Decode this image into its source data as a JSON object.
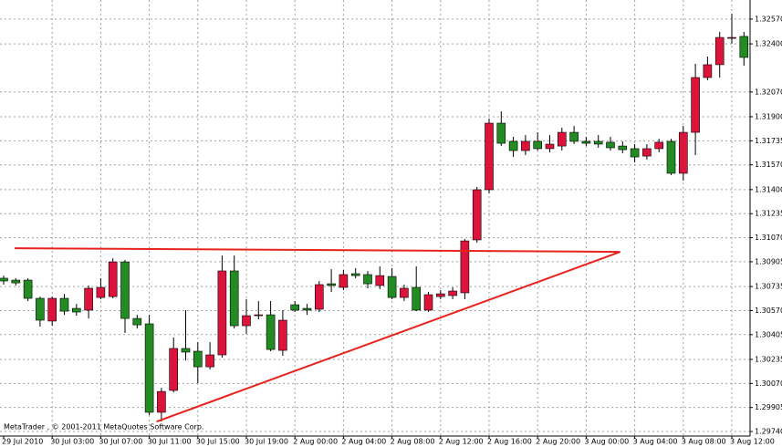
{
  "chart_data": {
    "type": "candlestick",
    "copyright": "MetaTrader , © 2001-2011 MetaQuotes Software Corp.",
    "up_color": "#dc143c",
    "down_color": "#228b22",
    "grid": true,
    "categories": [
      "29 Jul 2010",
      null,
      null,
      null,
      "30 Jul 03:00",
      null,
      null,
      null,
      "30 Jul 07:00",
      null,
      null,
      null,
      "30 Jul 11:00",
      null,
      null,
      null,
      "30 Jul 15:00",
      null,
      null,
      null,
      "30 Jul 19:00",
      null,
      null,
      null,
      "2 Aug 00:00",
      null,
      null,
      null,
      "2 Aug 04:00",
      null,
      null,
      null,
      "2 Aug 08:00",
      null,
      null,
      null,
      "2 Aug 12:00",
      null,
      null,
      null,
      "2 Aug 16:00",
      null,
      null,
      null,
      "2 Aug 20:00",
      null,
      null,
      null,
      "3 Aug 00:00",
      null,
      null,
      null,
      "3 Aug 04:00",
      null,
      null,
      null,
      "3 Aug 08:00",
      null,
      null,
      null,
      "3 Aug 12:00",
      null
    ],
    "open": [
      1.30792,
      1.30779,
      1.30779,
      1.30654,
      1.30498,
      1.30654,
      1.30585,
      1.30573,
      1.3066,
      1.30666,
      1.30904,
      1.30516,
      1.30479,
      1.29872,
      1.30022,
      1.3031,
      1.30291,
      1.30184,
      1.30266,
      1.30842,
      1.30466,
      1.30535,
      1.30541,
      1.30297,
      1.3061,
      1.30585,
      1.30579,
      1.30754,
      1.30729,
      1.30823,
      1.30817,
      1.30742,
      1.30804,
      1.3066,
      1.30729,
      1.30573,
      1.30666,
      1.30673,
      1.30692,
      1.31055,
      1.31399,
      1.31856,
      1.31731,
      1.31668,
      1.31731,
      1.31681,
      1.31699,
      1.31793,
      1.31731,
      1.31731,
      1.31725,
      1.31699,
      1.31681,
      1.3163,
      1.31681,
      1.31731,
      1.31512,
      1.31793,
      1.32169,
      1.32257,
      1.32438,
      1.32451
    ],
    "high": [
      1.3081,
      1.30792,
      1.30792,
      1.30666,
      1.30666,
      1.30685,
      1.30616,
      1.30742,
      1.30792,
      1.30929,
      1.30917,
      1.30541,
      1.30541,
      1.3004,
      1.30385,
      1.30573,
      1.30353,
      1.30353,
      1.30948,
      1.30948,
      1.30648,
      1.30635,
      1.30635,
      1.30573,
      1.30635,
      1.30616,
      1.30773,
      1.30854,
      1.30848,
      1.30861,
      1.30842,
      1.30873,
      1.30861,
      1.30748,
      1.30873,
      1.30698,
      1.3071,
      1.30729,
      1.31061,
      1.31418,
      1.31887,
      1.31937,
      1.31762,
      1.31774,
      1.31793,
      1.31774,
      1.31825,
      1.31837,
      1.31762,
      1.31774,
      1.31762,
      1.31731,
      1.31712,
      1.31712,
      1.31749,
      1.31749,
      1.31837,
      1.32263,
      1.32313,
      1.32482,
      1.32607,
      1.32482
    ],
    "low": [
      1.30748,
      1.30742,
      1.30635,
      1.3046,
      1.30466,
      1.30541,
      1.30535,
      1.30516,
      1.30648,
      1.30654,
      1.30416,
      1.30447,
      1.29853,
      1.29809,
      1.30009,
      1.30228,
      1.30072,
      1.30166,
      1.30247,
      1.30447,
      1.3041,
      1.3051,
      1.30291,
      1.3026,
      1.3056,
      1.30541,
      1.3056,
      1.30698,
      1.3071,
      1.30792,
      1.30723,
      1.30717,
      1.30648,
      1.30635,
      1.30566,
      1.3056,
      1.30648,
      1.30648,
      1.30648,
      1.31036,
      1.31374,
      1.31699,
      1.31624,
      1.31637,
      1.31668,
      1.31656,
      1.31668,
      1.31712,
      1.31699,
      1.31687,
      1.31668,
      1.31649,
      1.31587,
      1.31606,
      1.31656,
      1.31499,
      1.31462,
      1.31637,
      1.3215,
      1.32169,
      1.32401,
      1.3225
    ],
    "close": [
      1.30773,
      1.3076,
      1.30654,
      1.30504,
      1.30654,
      1.30566,
      1.3056,
      1.30723,
      1.30729,
      1.30904,
      1.30516,
      1.30472,
      1.29872,
      1.30015,
      1.3031,
      1.30285,
      1.30184,
      1.30266,
      1.30842,
      1.30466,
      1.30535,
      1.30541,
      1.30303,
      1.30504,
      1.30573,
      1.30573,
      1.30748,
      1.30742,
      1.30817,
      1.3081,
      1.30754,
      1.3081,
      1.3066,
      1.30723,
      1.30573,
      1.30679,
      1.30685,
      1.30704,
      1.31048,
      1.31399,
      1.31856,
      1.31718,
      1.31668,
      1.31731,
      1.31681,
      1.31712,
      1.31793,
      1.31731,
      1.31718,
      1.31712,
      1.31687,
      1.31674,
      1.31624,
      1.31681,
      1.31725,
      1.31512,
      1.31793,
      1.32169,
      1.32257,
      1.32444,
      1.32444,
      1.32307
    ],
    "ylim": [
      1.29709,
      1.32701
    ],
    "yticks": [
      {
        "value": 1.3257,
        "label": "1.32570"
      },
      {
        "value": 1.324,
        "label": "1.32400"
      },
      {
        "value": 1.3207,
        "label": "1.32070"
      },
      {
        "value": 1.319,
        "label": "1.31900"
      },
      {
        "value": 1.31735,
        "label": "1.31735"
      },
      {
        "value": 1.3157,
        "label": "1.31570"
      },
      {
        "value": 1.314,
        "label": "1.31400"
      },
      {
        "value": 1.31235,
        "label": "1.31235"
      },
      {
        "value": 1.3107,
        "label": "1.31070"
      },
      {
        "value": 1.30905,
        "label": "1.30905"
      },
      {
        "value": 1.30735,
        "label": "1.30735"
      },
      {
        "value": 1.3057,
        "label": "1.30570"
      },
      {
        "value": 1.30405,
        "label": "1.30405"
      },
      {
        "value": 1.30235,
        "label": "1.30235"
      },
      {
        "value": 1.3007,
        "label": "1.30070"
      },
      {
        "value": 1.29905,
        "label": "1.29905"
      },
      {
        "value": 1.2974,
        "label": "1.29740"
      }
    ],
    "trendlines": [
      {
        "color": "#e8231e",
        "x": [
          0.9,
          50.8
        ],
        "y": [
          1.30998,
          1.30973
        ]
      },
      {
        "color": "#e8231e",
        "x": [
          12.6,
          50.8
        ],
        "y": [
          1.29808,
          1.30973
        ]
      }
    ]
  }
}
